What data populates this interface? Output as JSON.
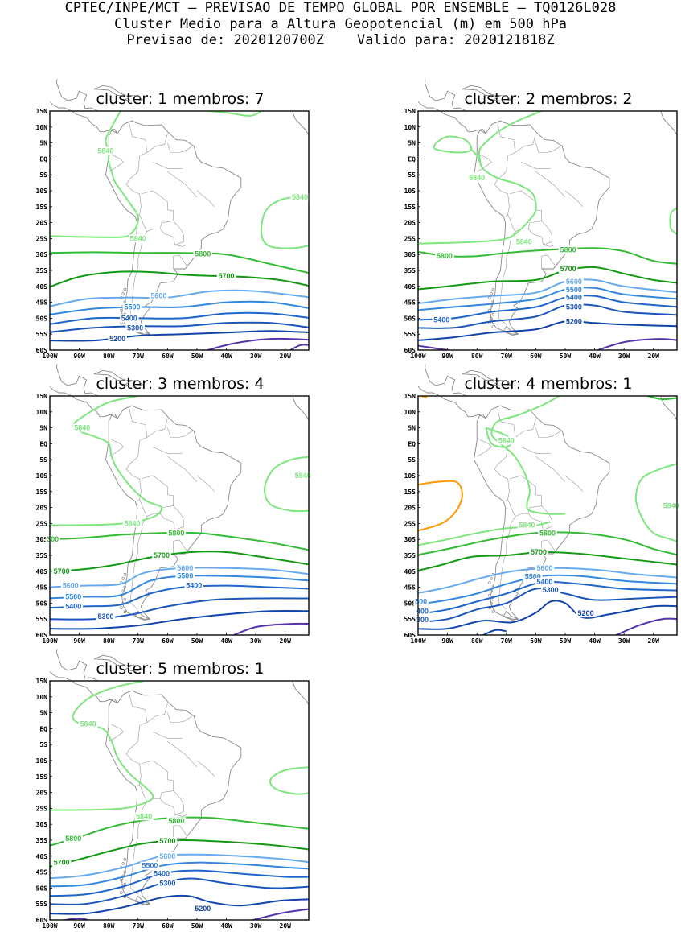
{
  "header": {
    "line1": "CPTEC/INPE/MCT – PREVISAO DE TEMPO GLOBAL POR ENSEMBLE – TQ0126L028",
    "line2": "Cluster Medio para a Altura Geopotencial (m) em 500 hPa",
    "line3": "Previsao de: 2020120700Z    Valido para: 2020121818Z"
  },
  "lat_labels": [
    "15N",
    "10N",
    "5N",
    "EQ",
    "5S",
    "10S",
    "15S",
    "20S",
    "25S",
    "30S",
    "35S",
    "40S",
    "45S",
    "50S",
    "55S",
    "60S"
  ],
  "lon_labels": [
    "100W",
    "90W",
    "80W",
    "70W",
    "60W",
    "50W",
    "40W",
    "30W",
    "20W"
  ],
  "colors": {
    "c5840": "#7ee67e",
    "c5800": "#33bb33",
    "c5700": "#119911",
    "c5600": "#66aaee",
    "c5500": "#3388dd",
    "c5400": "#1f66cc",
    "c5300": "#1a55bb",
    "c5200": "#1144aa",
    "c5100": "#5533aa",
    "c5880": "#ff9900",
    "coast": "#888888"
  },
  "panels": [
    {
      "title": "cluster: 1   membros: 7",
      "labels": {
        "a": "5840",
        "b": "5840",
        "c": "5840",
        "d": "5800",
        "e": "5700",
        "f": "5600",
        "g": "5500",
        "h": "5400",
        "i": "5300",
        "j": "5200"
      }
    },
    {
      "title": "cluster: 2   membros: 2",
      "labels": {
        "a": "5840",
        "b": "5840",
        "c": "5800",
        "d": "5800",
        "e": "5700",
        "f": "5600",
        "g": "5500",
        "h": "5400",
        "i": "5300",
        "j": "5200",
        "k": "5400"
      }
    },
    {
      "title": "cluster: 3   membros: 4",
      "labels": {
        "a": "5840",
        "b": "5840",
        "c": "5840",
        "d": "5800",
        "e": "5700",
        "f": "5600",
        "g": "5500",
        "h": "5400",
        "i": "5300",
        "j": "5700",
        "k": "5600",
        "l": "5500",
        "m": "5400",
        "n": "300"
      }
    },
    {
      "title": "cluster: 4   membros: 1",
      "labels": {
        "a": "5840",
        "b": "5840",
        "c": "5840",
        "d": "5800",
        "e": "5700",
        "f": "5600",
        "g": "5500",
        "h": "5400",
        "i": "5300",
        "j": "5200",
        "k": "500",
        "l": "400",
        "m": "300"
      }
    },
    {
      "title": "cluster: 5   membros: 1",
      "labels": {
        "a": "5840",
        "b": "5840",
        "c": "5800",
        "d": "5800",
        "e": "5700",
        "f": "5700",
        "g": "5600",
        "h": "5500",
        "i": "5400",
        "j": "5300",
        "k": "5200"
      }
    }
  ]
}
